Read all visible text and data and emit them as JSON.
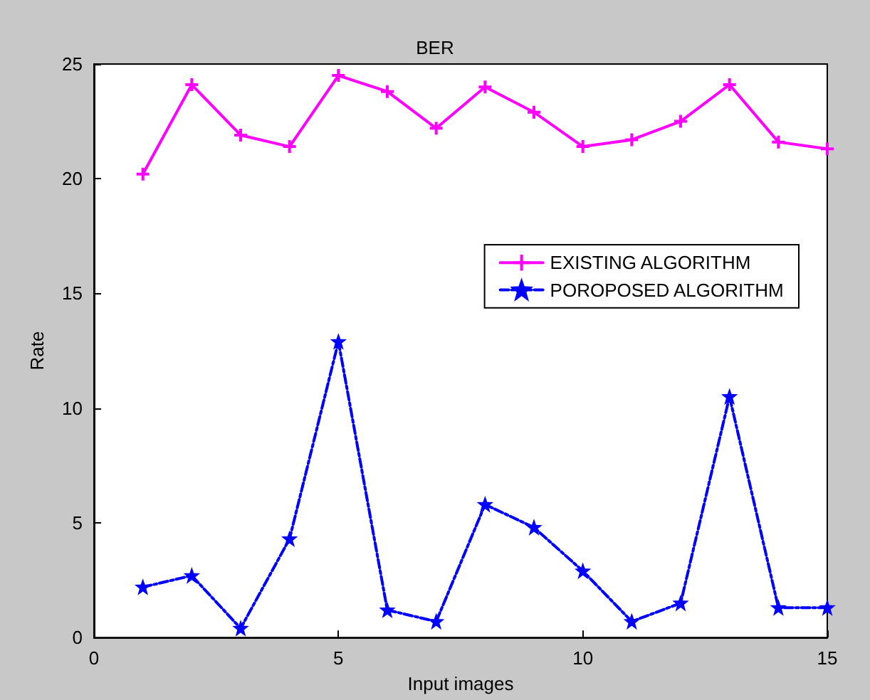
{
  "chart_data": {
    "type": "line",
    "title": "BER",
    "xlabel": "Input images",
    "ylabel": "Rate",
    "x": [
      1,
      2,
      3,
      4,
      5,
      6,
      7,
      8,
      9,
      10,
      11,
      12,
      13,
      14,
      15
    ],
    "series": [
      {
        "name": "EXISTING ALGORITHM",
        "color": "#ff00ff",
        "marker": "cross",
        "line_style": "solid",
        "values": [
          20.2,
          24.1,
          21.9,
          21.4,
          24.5,
          23.8,
          22.2,
          24.0,
          22.9,
          21.4,
          21.7,
          22.5,
          24.1,
          21.6,
          21.3
        ]
      },
      {
        "name": "POROPOSED ALGORITHM",
        "color": "#0000ff",
        "marker": "star",
        "line_style": "dashed",
        "values": [
          2.2,
          2.7,
          0.4,
          4.3,
          12.9,
          1.2,
          0.7,
          5.8,
          4.8,
          2.9,
          0.7,
          1.5,
          10.5,
          1.3,
          1.3
        ]
      }
    ],
    "xlim": [
      0,
      15
    ],
    "xticks": [
      0,
      5,
      10,
      15
    ],
    "ylim": [
      0,
      25
    ],
    "yticks": [
      0,
      5,
      10,
      15,
      20,
      25
    ],
    "grid": false,
    "legend": "right"
  }
}
